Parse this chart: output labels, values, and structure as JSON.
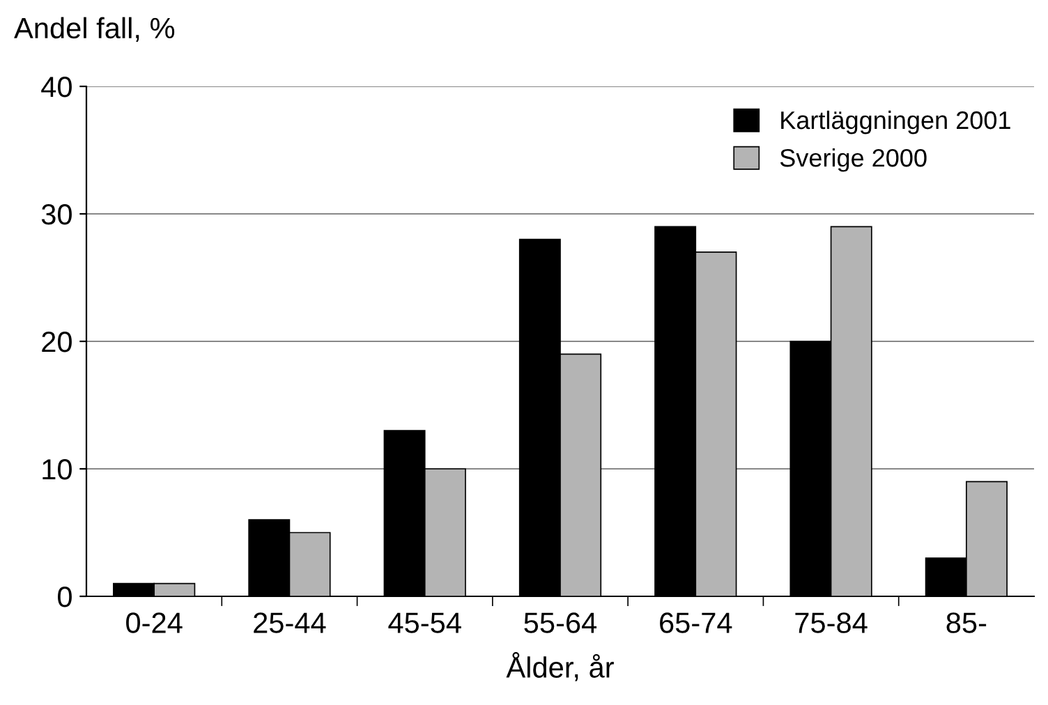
{
  "chart_data": {
    "type": "bar",
    "ylabel": "Andel fall, %",
    "xlabel": "Ålder, år",
    "categories": [
      "0-24",
      "25-44",
      "45-54",
      "55-64",
      "65-74",
      "75-84",
      "85-"
    ],
    "series": [
      {
        "name": "Kartläggningen 2001",
        "color": "#000000",
        "values": [
          1,
          6,
          13,
          28,
          29,
          20,
          3
        ]
      },
      {
        "name": "Sverige 2000",
        "color": "#b4b4b4",
        "values": [
          1,
          5,
          10,
          19,
          27,
          29,
          9
        ]
      }
    ],
    "ylim": [
      0,
      40
    ],
    "yticks": [
      0,
      10,
      20,
      30,
      40
    ],
    "grid": "y",
    "legend": "top right"
  }
}
